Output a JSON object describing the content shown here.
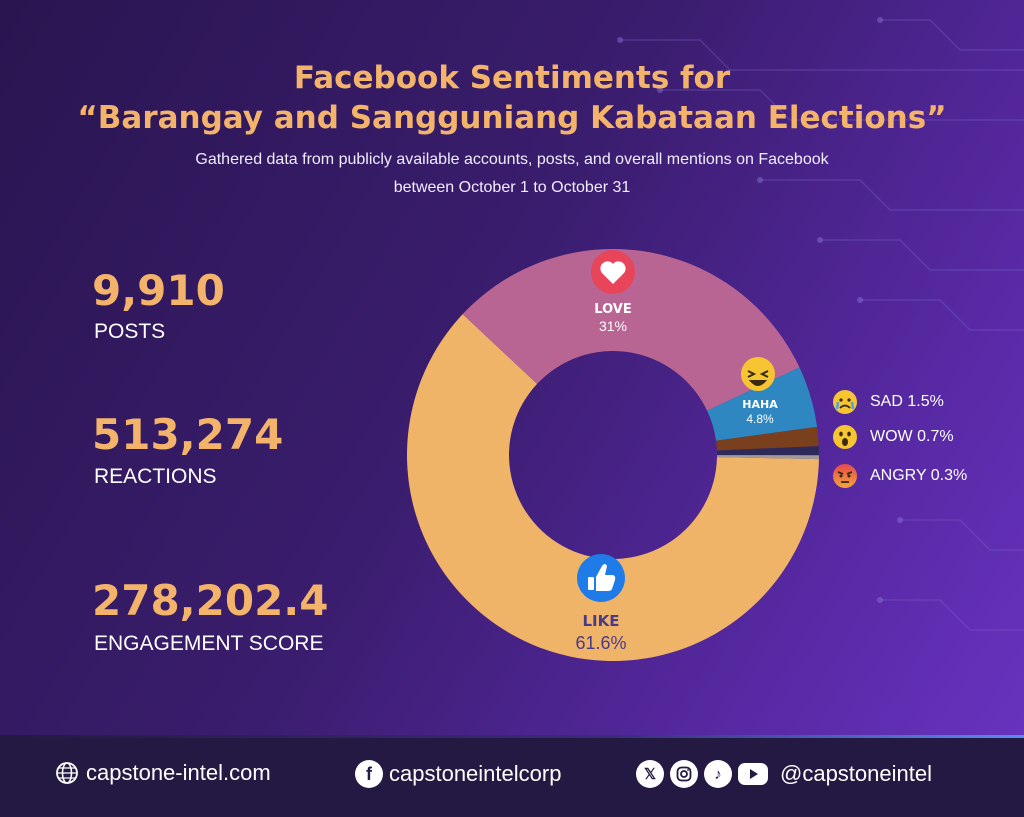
{
  "header": {
    "title_line1": "Facebook Sentiments for",
    "title_line2": "“Barangay and Sangguniang Kabataan Elections”",
    "subtitle_line1": "Gathered data from publicly available accounts, posts, and overall mentions on Facebook",
    "subtitle_line2": "between October 1 to October 31"
  },
  "stats": [
    {
      "value": "9,910",
      "label": "POSTS"
    },
    {
      "value": "513,274",
      "label": "REACTIONS"
    },
    {
      "value": "278,202.4",
      "label": "ENGAGEMENT SCORE"
    }
  ],
  "chart_data": {
    "type": "pie",
    "donut": true,
    "slices": [
      {
        "label": "LIKE",
        "display": "61.6%",
        "value": 61.6,
        "color": "#f0b468",
        "icon": "thumbs-up-icon"
      },
      {
        "label": "LOVE",
        "display": "31%",
        "value": 31.0,
        "color": "#b96593",
        "icon": "heart-icon"
      },
      {
        "label": "HAHA",
        "display": "4.8%",
        "value": 4.8,
        "color": "#2e87c0",
        "icon": "laughing-face-icon"
      },
      {
        "label": "SAD",
        "display": "1.5%",
        "value": 1.5,
        "color": "#7a3f1d",
        "icon": "crying-face-icon"
      },
      {
        "label": "WOW",
        "display": "0.7%",
        "value": 0.7,
        "color": "#2d2a5a",
        "icon": "surprised-face-icon"
      },
      {
        "label": "ANGRY",
        "display": "0.3%",
        "value": 0.3,
        "color": "#a09a96",
        "icon": "angry-face-icon"
      }
    ],
    "legend": [
      {
        "text": "SAD 1.5%",
        "icon": "crying-face-icon"
      },
      {
        "text": "WOW 0.7%",
        "icon": "surprised-face-icon"
      },
      {
        "text": "ANGRY 0.3%",
        "icon": "angry-face-icon"
      }
    ]
  },
  "footer": {
    "website": "capstone-intel.com",
    "facebook": "capstoneintelcorp",
    "social_handle": "@capstoneintel",
    "social_icons": [
      "x-icon",
      "instagram-icon",
      "tiktok-icon",
      "youtube-icon"
    ]
  },
  "colors": {
    "accent": "#f3b36b",
    "background_dark": "#2a1550",
    "background_light": "#6a34c2",
    "footer_bg": "#241942"
  }
}
